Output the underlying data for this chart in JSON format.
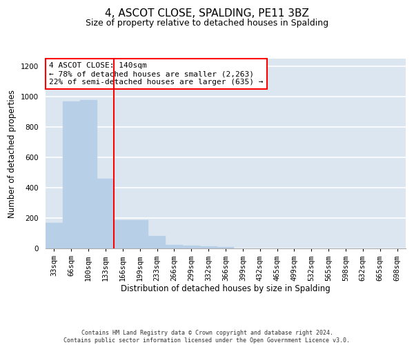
{
  "title": "4, ASCOT CLOSE, SPALDING, PE11 3BZ",
  "subtitle": "Size of property relative to detached houses in Spalding",
  "xlabel": "Distribution of detached houses by size in Spalding",
  "ylabel": "Number of detached properties",
  "categories": [
    "33sqm",
    "66sqm",
    "100sqm",
    "133sqm",
    "166sqm",
    "199sqm",
    "233sqm",
    "266sqm",
    "299sqm",
    "332sqm",
    "366sqm",
    "399sqm",
    "432sqm",
    "465sqm",
    "499sqm",
    "532sqm",
    "565sqm",
    "598sqm",
    "632sqm",
    "665sqm",
    "698sqm"
  ],
  "values": [
    170,
    970,
    975,
    460,
    185,
    185,
    80,
    25,
    18,
    12,
    10,
    0,
    0,
    0,
    0,
    0,
    0,
    0,
    0,
    0,
    0
  ],
  "bar_color": "#b8cfe8",
  "bar_edge_color": "#b8cfe8",
  "vline_color": "red",
  "annotation_text": "4 ASCOT CLOSE: 140sqm\n← 78% of detached houses are smaller (2,263)\n22% of semi-detached houses are larger (635) →",
  "annotation_box_color": "white",
  "annotation_box_edge_color": "red",
  "ylim": [
    0,
    1250
  ],
  "yticks": [
    0,
    200,
    400,
    600,
    800,
    1000,
    1200
  ],
  "background_color": "#dce6f0",
  "grid_color": "white",
  "footer_line1": "Contains HM Land Registry data © Crown copyright and database right 2024.",
  "footer_line2": "Contains public sector information licensed under the Open Government Licence v3.0.",
  "title_fontsize": 11,
  "subtitle_fontsize": 9,
  "axis_label_fontsize": 8.5,
  "tick_fontsize": 7.5,
  "annotation_fontsize": 8
}
